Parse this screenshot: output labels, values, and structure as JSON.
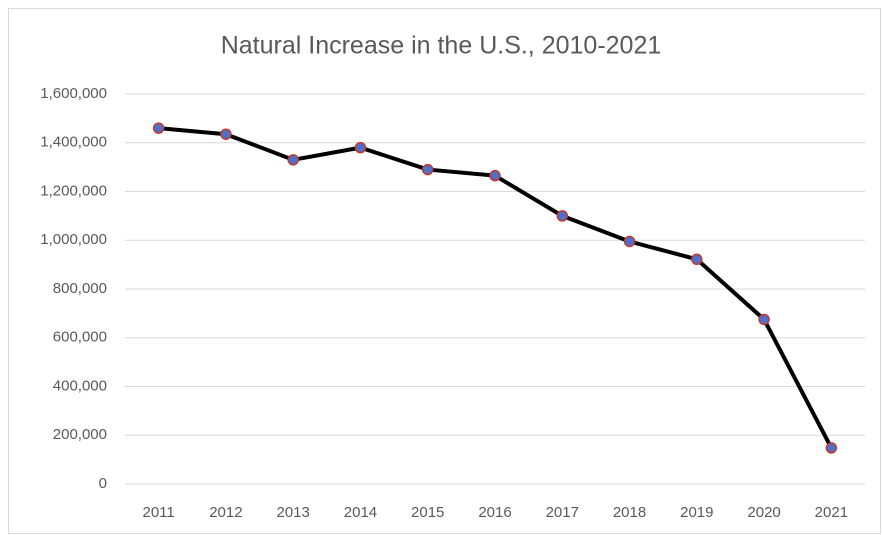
{
  "chart_data": {
    "type": "line",
    "title": "Natural Increase in the U.S., 2010-2021",
    "categories": [
      "2011",
      "2012",
      "2013",
      "2014",
      "2015",
      "2016",
      "2017",
      "2018",
      "2019",
      "2020",
      "2021"
    ],
    "values": [
      1460000,
      1435000,
      1330000,
      1380000,
      1290000,
      1265000,
      1100000,
      995000,
      922000,
      675000,
      148000
    ],
    "color": "#000000",
    "marker_color": "#4f6fc9",
    "marker_edge_color": "#c0392b",
    "ylim": [
      0,
      1600000
    ],
    "yticks": [
      0,
      {
        "value": 200000,
        "label": "200,000"
      },
      {
        "value": 400000,
        "label": "400,000"
      },
      {
        "value": 600000,
        "label": "600,000"
      },
      {
        "value": 800000,
        "label": "800,000"
      },
      {
        "value": 1000000,
        "label": "1,000,000"
      },
      {
        "value": 1200000,
        "label": "1,200,000"
      },
      {
        "value": 1400000,
        "label": "1,400,000"
      },
      {
        "value": 1600000,
        "label": "1,600,000"
      }
    ],
    "grid": true
  }
}
